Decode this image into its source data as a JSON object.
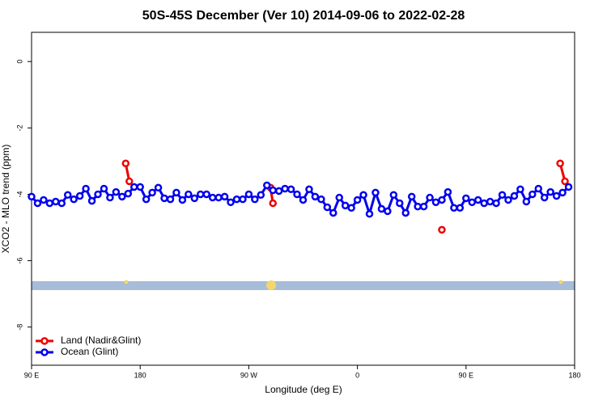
{
  "chart_data": {
    "type": "line",
    "title": "50S-45S December (Ver 10)   2014-09-06 to 2022-02-28",
    "x_label": "Longitude (deg E)",
    "y_label": "XCO2 - MLO trend (ppm)",
    "xlim": [
      90,
      540
    ],
    "xticks": [
      {
        "value": 90,
        "label": "90 E"
      },
      180,
      {
        "value": 270,
        "label": "90 W"
      },
      {
        "value": 360,
        "label": "0"
      },
      {
        "value": 450,
        "label": "90 E"
      },
      {
        "value": 540,
        "label": "180"
      }
    ],
    "ylim": [
      -9.15,
      0.88
    ],
    "yticks": [
      0,
      -2,
      -4,
      -6,
      -8
    ],
    "legend": "bottom-left",
    "series": [
      {
        "name": "Land (Nadir&Glint)",
        "color": "#ee0000",
        "x": [
          168,
          171,
          null,
          288,
          290,
          null,
          430,
          null,
          528,
          532
        ],
        "values": [
          -3.07,
          -3.61,
          null,
          -3.8,
          -4.27,
          null,
          -5.07,
          null,
          -3.07,
          -3.61
        ]
      },
      {
        "name": "Ocean (Glint)",
        "color": "#0000ee",
        "x": [
          90,
          95,
          100,
          105,
          110,
          115,
          120,
          125,
          130,
          135,
          140,
          145,
          150,
          155,
          160,
          165,
          170,
          175,
          180,
          185,
          190,
          195,
          200,
          205,
          210,
          215,
          220,
          225,
          230,
          235,
          240,
          245,
          250,
          255,
          260,
          265,
          270,
          275,
          280,
          285,
          290,
          295,
          300,
          305,
          310,
          315,
          320,
          325,
          330,
          335,
          340,
          345,
          350,
          355,
          360,
          365,
          370,
          375,
          380,
          385,
          390,
          395,
          400,
          405,
          410,
          415,
          420,
          425,
          430,
          435,
          440,
          445,
          450,
          455,
          460,
          465,
          470,
          475,
          480,
          485,
          490,
          495,
          500,
          505,
          510,
          515,
          520,
          525,
          530,
          535
        ],
        "values": [
          -4.07,
          -4.27,
          -4.17,
          -4.27,
          -4.22,
          -4.27,
          -4.02,
          -4.15,
          -4.05,
          -3.83,
          -4.2,
          -4.0,
          -3.83,
          -4.1,
          -3.93,
          -4.07,
          -3.98,
          -3.78,
          -3.78,
          -4.15,
          -3.95,
          -3.8,
          -4.12,
          -4.15,
          -3.95,
          -4.17,
          -4.0,
          -4.12,
          -4.0,
          -4.0,
          -4.1,
          -4.1,
          -4.07,
          -4.24,
          -4.15,
          -4.15,
          -4.0,
          -4.15,
          -4.02,
          -3.73,
          -3.88,
          -3.9,
          -3.83,
          -3.85,
          -4.0,
          -4.17,
          -3.85,
          -4.07,
          -4.15,
          -4.39,
          -4.56,
          -4.1,
          -4.34,
          -4.41,
          -4.17,
          -4.02,
          -4.59,
          -3.95,
          -4.44,
          -4.51,
          -4.02,
          -4.27,
          -4.56,
          -4.07,
          -4.37,
          -4.37,
          -4.1,
          -4.24,
          -4.17,
          -3.93,
          -4.41,
          -4.41,
          -4.12,
          -4.24,
          -4.17,
          -4.27,
          -4.22,
          -4.27,
          -4.02,
          -4.17,
          -4.05,
          -3.85,
          -4.22,
          -4.0,
          -3.83,
          -4.1,
          -3.93,
          -4.05,
          -3.95,
          -3.78
        ]
      }
    ]
  }
}
